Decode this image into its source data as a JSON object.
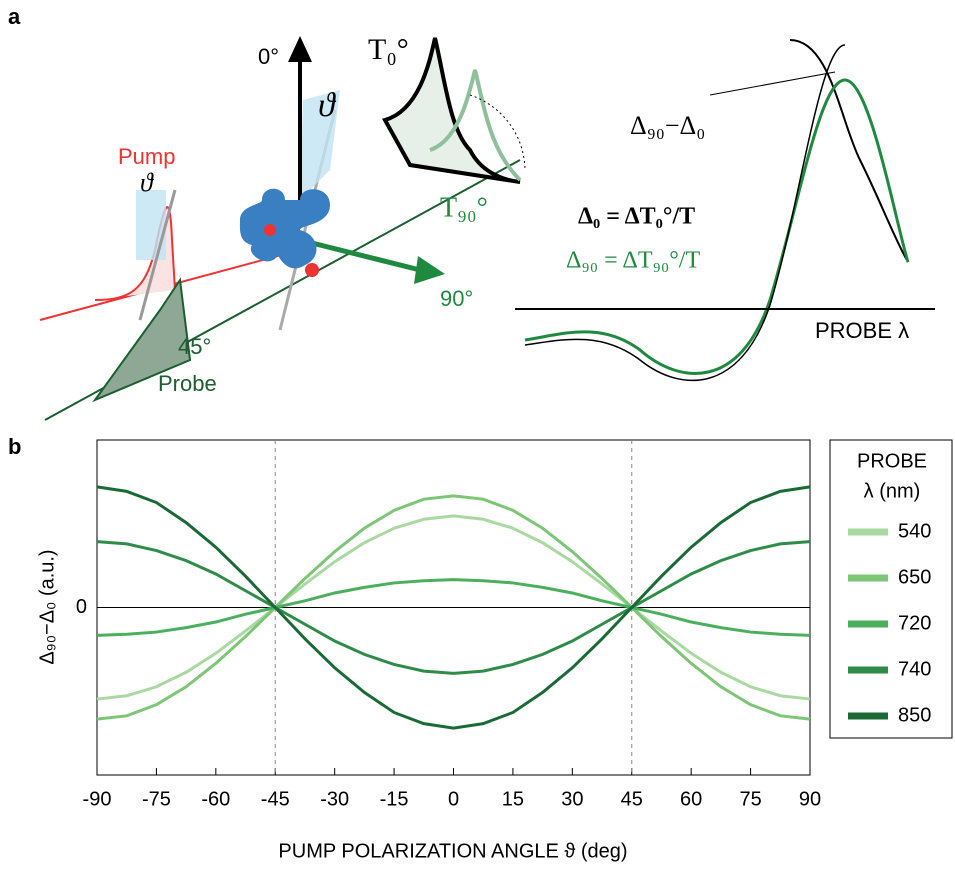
{
  "panel_a": {
    "label": "a",
    "zero_deg": "0°",
    "theta_top": "ϑ",
    "t0": "T₀°",
    "pump": "Pump",
    "theta_pump": "ϑ",
    "t90": "T₉₀°",
    "ninety_deg": "90°",
    "forty_five": "45°",
    "probe": "Probe",
    "diff": "Δ₉₀−Δ₀",
    "eq0": "Δ₀ = ΔT₀°/T",
    "eq90": "Δ₉₀ = ΔT₉₀°/T",
    "probe_lambda": "PROBE λ"
  },
  "chart_data": {
    "type": "line",
    "panel_label": "b",
    "xlabel": "PUMP POLARIZATION ANGLE ϑ (deg)",
    "ylabel": "Δ₉₀−Δ₀ (a.u.)",
    "legend_title": [
      "PROBE",
      "λ (nm)"
    ],
    "x": [
      -90,
      -82.5,
      -75,
      -67.5,
      -60,
      -52.5,
      -45,
      -37.5,
      -30,
      -22.5,
      -15,
      -7.5,
      0,
      7.5,
      15,
      22.5,
      30,
      37.5,
      45,
      52.5,
      60,
      67.5,
      75,
      82.5,
      90
    ],
    "xlim": [
      -90,
      90
    ],
    "xticks": [
      -90,
      -75,
      -60,
      -45,
      -30,
      -15,
      0,
      15,
      30,
      45,
      60,
      75,
      90
    ],
    "ylim": [
      -1.5,
      1.5
    ],
    "yticks": [
      0
    ],
    "vlines": [
      -45,
      45
    ],
    "series": [
      {
        "name": "540",
        "color": "#a9d9a1",
        "values": [
          -0.82,
          -0.79,
          -0.71,
          -0.58,
          -0.41,
          -0.21,
          0,
          0.21,
          0.41,
          0.58,
          0.71,
          0.79,
          0.82,
          0.79,
          0.71,
          0.58,
          0.41,
          0.21,
          0,
          -0.21,
          -0.41,
          -0.58,
          -0.71,
          -0.79,
          -0.82
        ]
      },
      {
        "name": "650",
        "color": "#7cc676",
        "values": [
          -1,
          -0.97,
          -0.87,
          -0.71,
          -0.5,
          -0.26,
          0,
          0.26,
          0.5,
          0.71,
          0.87,
          0.97,
          1,
          0.97,
          0.87,
          0.71,
          0.5,
          0.26,
          0,
          -0.26,
          -0.5,
          -0.71,
          -0.87,
          -0.97,
          -1
        ]
      },
      {
        "name": "720",
        "color": "#4caf5d",
        "values": [
          -0.25,
          -0.24,
          -0.22,
          -0.18,
          -0.13,
          -0.06,
          0,
          0.06,
          0.13,
          0.18,
          0.22,
          0.24,
          0.25,
          0.24,
          0.22,
          0.18,
          0.13,
          0.06,
          0,
          -0.06,
          -0.13,
          -0.18,
          -0.22,
          -0.24,
          -0.25
        ]
      },
      {
        "name": "740",
        "color": "#2e8c48",
        "values": [
          0.59,
          0.57,
          0.51,
          0.42,
          0.3,
          0.15,
          0,
          -0.15,
          -0.3,
          -0.42,
          -0.51,
          -0.57,
          -0.59,
          -0.57,
          -0.51,
          -0.42,
          -0.3,
          -0.15,
          0,
          0.15,
          0.3,
          0.42,
          0.51,
          0.57,
          0.59
        ]
      },
      {
        "name": "850",
        "color": "#1a6a35",
        "values": [
          1.08,
          1.04,
          0.94,
          0.76,
          0.54,
          0.28,
          0,
          -0.28,
          -0.54,
          -0.76,
          -0.94,
          -1.04,
          -1.08,
          -1.04,
          -0.94,
          -0.76,
          -0.54,
          -0.28,
          0,
          0.28,
          0.54,
          0.76,
          0.94,
          1.04,
          1.08
        ]
      }
    ]
  }
}
